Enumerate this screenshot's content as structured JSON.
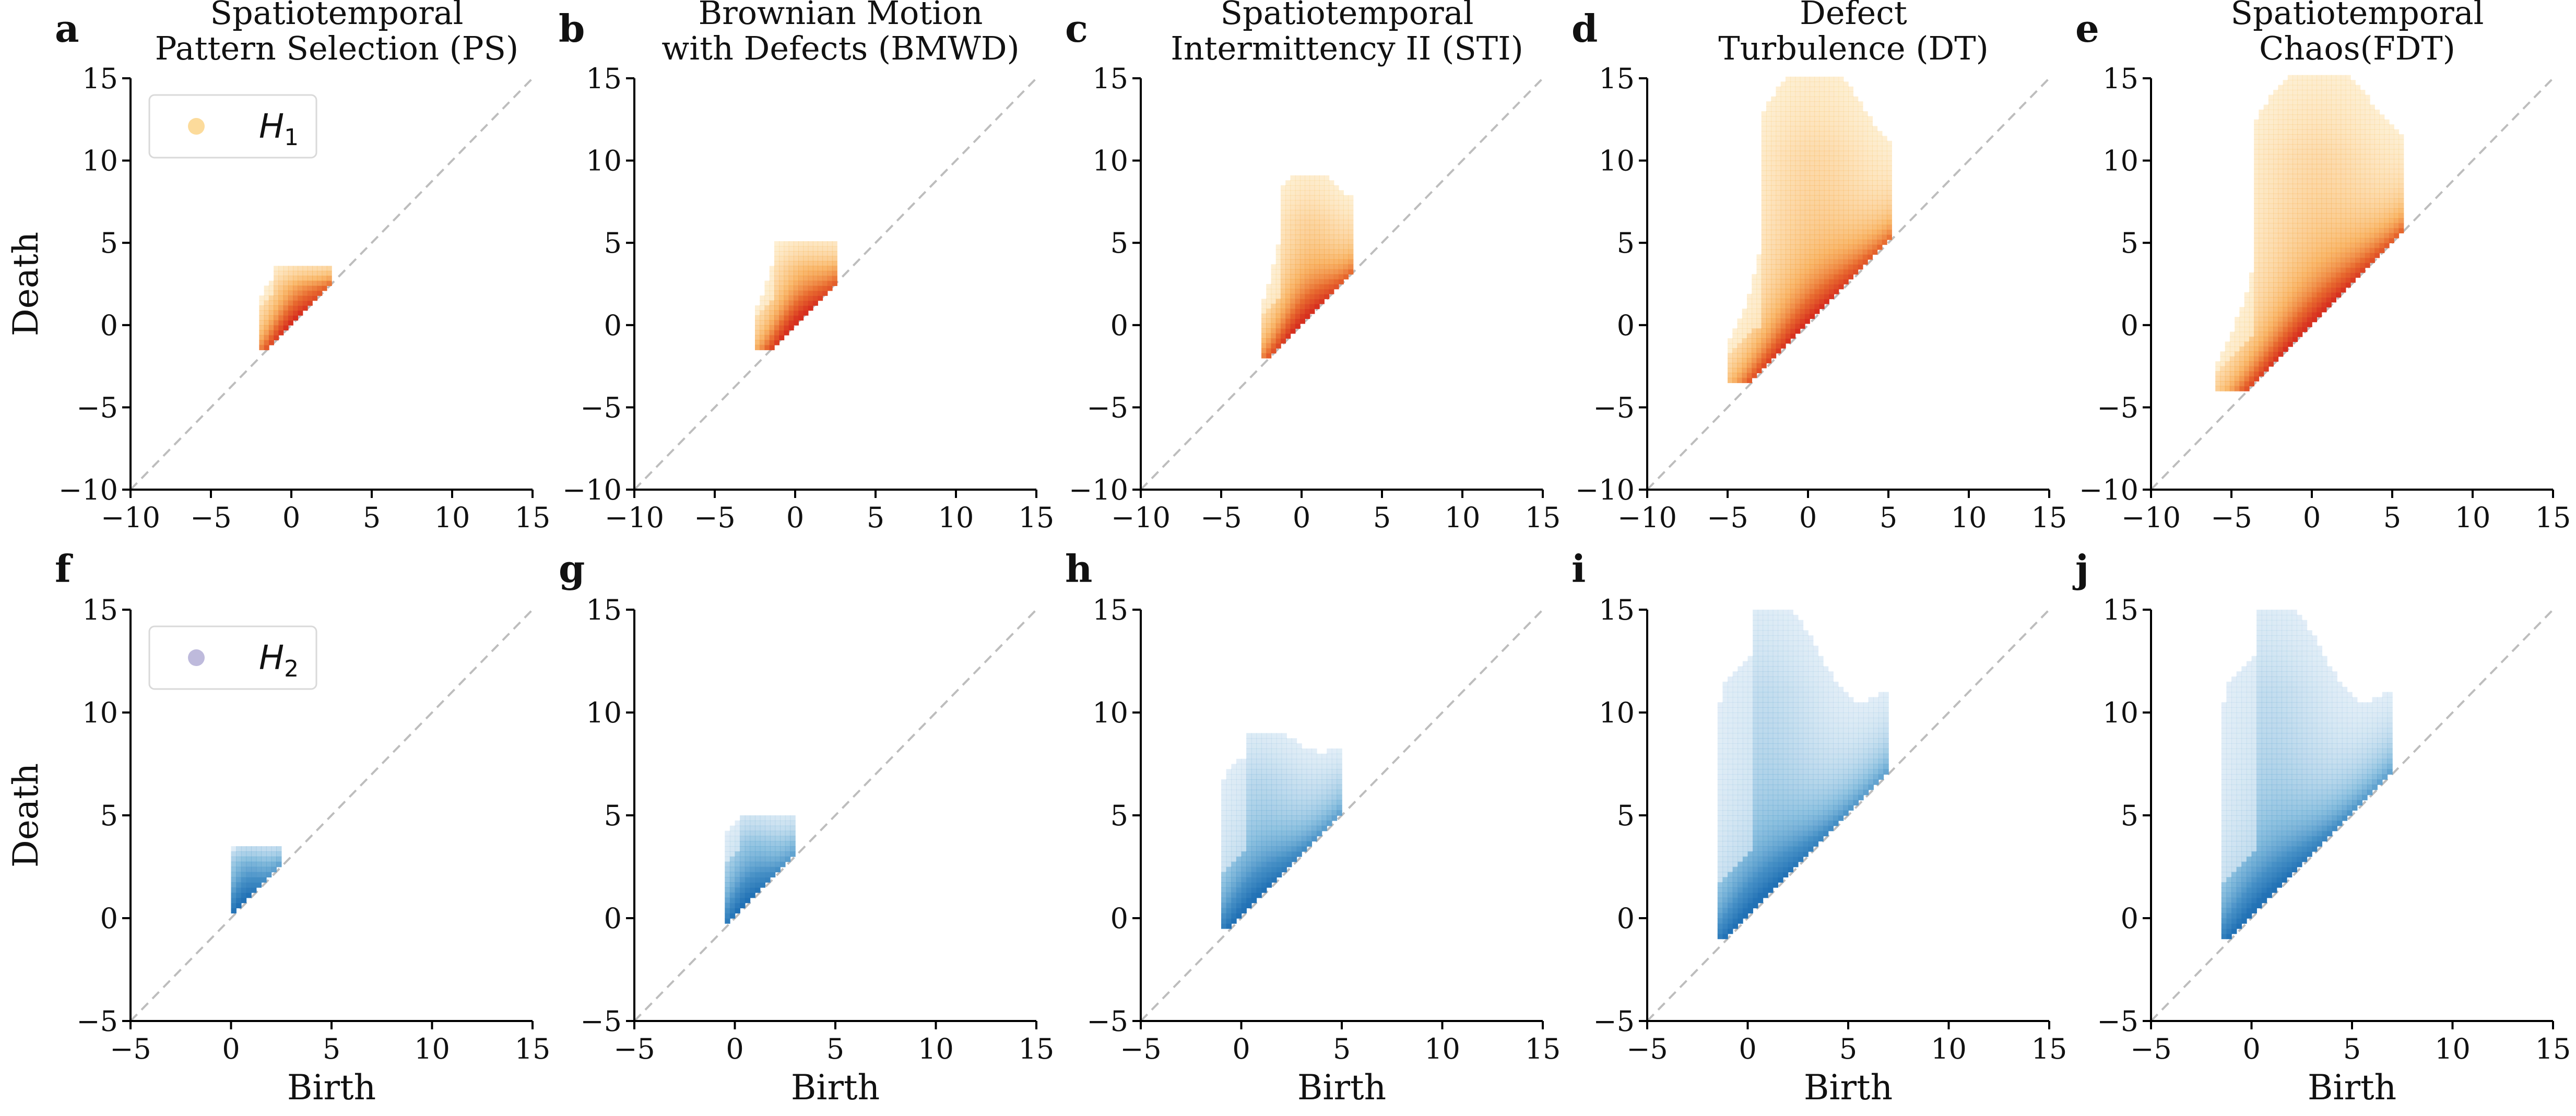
{
  "chart_data": [
    {
      "panel": "a",
      "title": [
        "Spatiotemporal",
        "Pattern Selection (PS)"
      ],
      "type": "heatmap",
      "homology": "H1",
      "xlim": [
        -10,
        15
      ],
      "ylim": [
        -10,
        15
      ],
      "xticks": [
        "−10",
        "−5",
        "0",
        "5",
        "10",
        "15"
      ],
      "yticks": [
        "−10",
        "−5",
        "0",
        "5",
        "10",
        "15"
      ],
      "ylabel": "Death",
      "xlabel": "",
      "legend": "H",
      "legend_sub": "1",
      "density": {
        "birth_range": [
          -2,
          2.5
        ],
        "death_range": [
          -1.5,
          3.5
        ]
      }
    },
    {
      "panel": "b",
      "title": [
        "Brownian Motion",
        "with Defects (BMWD)"
      ],
      "type": "heatmap",
      "homology": "H1",
      "xlim": [
        -10,
        15
      ],
      "ylim": [
        -10,
        15
      ],
      "xticks": [
        "−10",
        "−5",
        "0",
        "5",
        "10",
        "15"
      ],
      "yticks": [
        "−10",
        "−5",
        "0",
        "5",
        "10",
        "15"
      ],
      "ylabel": "",
      "xlabel": "",
      "density": {
        "birth_range": [
          -2.5,
          2.5
        ],
        "death_range": [
          -1.5,
          5
        ]
      }
    },
    {
      "panel": "c",
      "title": [
        "Spatiotemporal",
        "Intermittency II (STI)"
      ],
      "type": "heatmap",
      "homology": "H1",
      "xlim": [
        -10,
        15
      ],
      "ylim": [
        -10,
        15
      ],
      "xticks": [
        "−10",
        "−5",
        "0",
        "5",
        "10",
        "15"
      ],
      "yticks": [
        "−10",
        "−5",
        "0",
        "5",
        "10",
        "15"
      ],
      "ylabel": "",
      "xlabel": "",
      "density": {
        "birth_range": [
          -2.5,
          3
        ],
        "death_range": [
          -2,
          9
        ]
      }
    },
    {
      "panel": "d",
      "title": [
        "Defect",
        "Turbulence (DT)"
      ],
      "type": "heatmap",
      "homology": "H1",
      "xlim": [
        -10,
        15
      ],
      "ylim": [
        -10,
        15
      ],
      "xticks": [
        "−10",
        "−5",
        "0",
        "5",
        "10",
        "15"
      ],
      "yticks": [
        "−10",
        "−5",
        "0",
        "5",
        "10",
        "15"
      ],
      "ylabel": "",
      "xlabel": "",
      "density": {
        "birth_range": [
          -5,
          5
        ],
        "death_range": [
          -3.5,
          15
        ]
      }
    },
    {
      "panel": "e",
      "title": [
        "Spatiotemporal",
        "Chaos(FDT)"
      ],
      "type": "heatmap",
      "homology": "H1",
      "xlim": [
        -10,
        15
      ],
      "ylim": [
        -10,
        15
      ],
      "xticks": [
        "−10",
        "−5",
        "0",
        "5",
        "10",
        "15"
      ],
      "yticks": [
        "−10",
        "−5",
        "0",
        "5",
        "10",
        "15"
      ],
      "ylabel": "",
      "xlabel": "",
      "density": {
        "birth_range": [
          -6,
          5.5
        ],
        "death_range": [
          -4,
          15
        ]
      }
    },
    {
      "panel": "f",
      "title": [],
      "type": "heatmap",
      "homology": "H2",
      "xlim": [
        -5,
        15
      ],
      "ylim": [
        -5,
        15
      ],
      "xticks": [
        "−5",
        "0",
        "5",
        "10",
        "15"
      ],
      "yticks": [
        "−5",
        "0",
        "5",
        "10",
        "15"
      ],
      "ylabel": "Death",
      "xlabel": "Birth",
      "legend": "H",
      "legend_sub": "2",
      "density": {
        "birth_range": [
          0,
          2.5
        ],
        "death_range": [
          0,
          3.5
        ]
      }
    },
    {
      "panel": "g",
      "title": [],
      "type": "heatmap",
      "homology": "H2",
      "xlim": [
        -5,
        15
      ],
      "ylim": [
        -5,
        15
      ],
      "xticks": [
        "−5",
        "0",
        "5",
        "10",
        "15"
      ],
      "yticks": [
        "−5",
        "0",
        "5",
        "10",
        "15"
      ],
      "ylabel": "",
      "xlabel": "Birth",
      "density": {
        "birth_range": [
          -0.5,
          3
        ],
        "death_range": [
          -0.5,
          5
        ]
      }
    },
    {
      "panel": "h",
      "title": [],
      "type": "heatmap",
      "homology": "H2",
      "xlim": [
        -5,
        15
      ],
      "ylim": [
        -5,
        15
      ],
      "xticks": [
        "−5",
        "0",
        "5",
        "10",
        "15"
      ],
      "yticks": [
        "−5",
        "0",
        "5",
        "10",
        "15"
      ],
      "ylabel": "",
      "xlabel": "Birth",
      "density": {
        "birth_range": [
          -1,
          5
        ],
        "death_range": [
          -0.5,
          9
        ]
      }
    },
    {
      "panel": "i",
      "title": [],
      "type": "heatmap",
      "homology": "H2",
      "xlim": [
        -5,
        15
      ],
      "ylim": [
        -5,
        15
      ],
      "xticks": [
        "−5",
        "0",
        "5",
        "10",
        "15"
      ],
      "yticks": [
        "−5",
        "0",
        "5",
        "10",
        "15"
      ],
      "ylabel": "",
      "xlabel": "Birth",
      "density": {
        "birth_range": [
          -1.5,
          7
        ],
        "death_range": [
          -1,
          15
        ]
      }
    },
    {
      "panel": "j",
      "title": [],
      "type": "heatmap",
      "homology": "H2",
      "xlim": [
        -5,
        15
      ],
      "ylim": [
        -5,
        15
      ],
      "xticks": [
        "−5",
        "0",
        "5",
        "10",
        "15"
      ],
      "yticks": [
        "−5",
        "0",
        "5",
        "10",
        "15"
      ],
      "ylabel": "",
      "xlabel": "Birth",
      "density": {
        "birth_range": [
          -1.5,
          7
        ],
        "death_range": [
          -1,
          15
        ]
      }
    }
  ],
  "colors": {
    "h1_light": "#fde4a0",
    "h1_mid": "#f7a13e",
    "h1_dark": "#d7301f",
    "h2_light": "#c6dbef",
    "h2_mid": "#6baed6",
    "h2_dark": "#2171b5",
    "diagonal": "#bdbdbd",
    "legend_h1_marker": "#fbd58a",
    "legend_h2_marker": "#b3aed6"
  }
}
